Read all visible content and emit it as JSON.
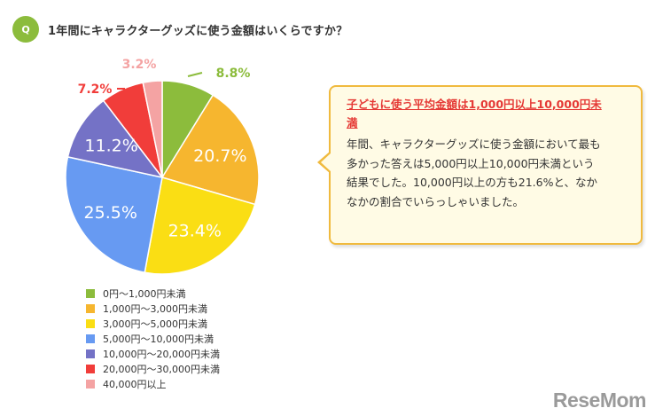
{
  "header": {
    "badge": "Q",
    "question": "1年間にキャラクターグッズに使う金額はいくらですか？"
  },
  "chart_data": {
    "type": "pie",
    "start": "12 o'clock, clockwise",
    "slices": [
      {
        "label": "0円～1,000円未満",
        "value": 8.8,
        "display": "8.8%",
        "color": "#8cbc3c",
        "label_pos": "outside"
      },
      {
        "label": "1,000円～3,000円未満",
        "value": 20.7,
        "display": "20.7%",
        "color": "#f6b62f",
        "label_pos": "inside"
      },
      {
        "label": "3,000円～5,000円未満",
        "value": 23.4,
        "display": "23.4%",
        "color": "#fade14",
        "label_pos": "inside"
      },
      {
        "label": "5,000円～10,000円未満",
        "value": 25.5,
        "display": "25.5%",
        "color": "#679af2",
        "label_pos": "inside"
      },
      {
        "label": "10,000円～20,000円未満",
        "value": 11.2,
        "display": "11.2%",
        "color": "#7472c6",
        "label_pos": "inside"
      },
      {
        "label": "20,000円～30,000円未満",
        "value": 7.2,
        "display": "7.2%",
        "color": "#f13d3a",
        "label_pos": "outside"
      },
      {
        "label": "40,000円以上",
        "value": 3.2,
        "display": "3.2%",
        "color": "#f4a3a3",
        "label_pos": "outside"
      }
    ],
    "legend_position": "bottom-left"
  },
  "callout": {
    "title_line1": "子どもに使う平均金額は1,000円以上10,000円未",
    "title_line2": "満",
    "body_lines": [
      "年間、キャラクターグッズに使う金額において最も",
      "多かった答えは5,000円以上10,000円未満という",
      "結果でした。10,000円以上の方も21.6%と、なか",
      "なかの割合でいらっしゃいました。"
    ]
  },
  "logo": "ReseMom"
}
